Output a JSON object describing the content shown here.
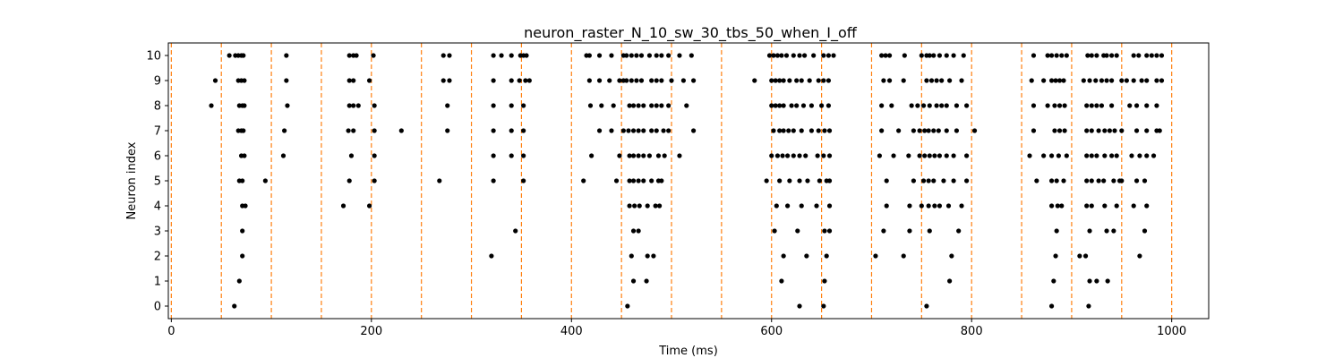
{
  "chart_data": {
    "type": "scatter",
    "title": "neuron_raster_N_10_sw_30_tbs_50_when_I_off",
    "xlabel": "Time (ms)",
    "ylabel": "Neuron index",
    "xlim": [
      -3,
      1037
    ],
    "ylim": [
      -0.5,
      10.5
    ],
    "xticks": [
      0,
      200,
      400,
      600,
      800,
      1000
    ],
    "yticks": [
      0,
      1,
      2,
      3,
      4,
      5,
      6,
      7,
      8,
      9,
      10
    ],
    "grid": false,
    "marker_color": "#000000",
    "vline_color": "#ff7f0e",
    "vline_style": "dashed",
    "vlines": [
      0,
      50,
      100,
      150,
      200,
      250,
      300,
      350,
      400,
      450,
      500,
      550,
      600,
      650,
      700,
      750,
      800,
      850,
      900,
      950,
      1000
    ],
    "series": [
      {
        "neuron": 10,
        "times": [
          58,
          64,
          67,
          70,
          72,
          115,
          178,
          182,
          185,
          202,
          272,
          278,
          322,
          330,
          340,
          349,
          352,
          355,
          415,
          418,
          428,
          440,
          452,
          455,
          460,
          465,
          470,
          478,
          485,
          490,
          497,
          508,
          520,
          598,
          602,
          606,
          610,
          615,
          622,
          628,
          633,
          642,
          652,
          657,
          662,
          710,
          714,
          718,
          733,
          750,
          755,
          758,
          762,
          768,
          775,
          782,
          792,
          862,
          876,
          880,
          885,
          890,
          895,
          916,
          920,
          925,
          932,
          935,
          940,
          945,
          962,
          967,
          975,
          980,
          985,
          990
        ]
      },
      {
        "neuron": 9,
        "times": [
          44,
          67,
          70,
          73,
          115,
          178,
          182,
          198,
          272,
          278,
          322,
          340,
          348,
          354,
          358,
          418,
          428,
          438,
          448,
          452,
          455,
          460,
          465,
          470,
          480,
          485,
          490,
          500,
          512,
          522,
          583,
          600,
          604,
          608,
          612,
          618,
          625,
          630,
          638,
          647,
          652,
          657,
          712,
          718,
          732,
          755,
          760,
          765,
          770,
          778,
          790,
          860,
          872,
          880,
          884,
          888,
          892,
          912,
          918,
          924,
          930,
          935,
          940,
          950,
          955,
          962,
          970,
          975,
          985,
          990
        ]
      },
      {
        "neuron": 8,
        "times": [
          40,
          68,
          71,
          73,
          116,
          178,
          182,
          187,
          203,
          276,
          322,
          340,
          352,
          419,
          430,
          442,
          458,
          462,
          467,
          472,
          480,
          485,
          490,
          497,
          515,
          600,
          604,
          608,
          612,
          620,
          625,
          632,
          640,
          650,
          657,
          710,
          720,
          740,
          746,
          752,
          758,
          765,
          770,
          775,
          785,
          795,
          862,
          876,
          883,
          888,
          893,
          915,
          920,
          925,
          930,
          940,
          958,
          965,
          975,
          985
        ]
      },
      {
        "neuron": 7,
        "times": [
          67,
          70,
          72,
          113,
          177,
          182,
          203,
          230,
          276,
          322,
          340,
          352,
          428,
          440,
          452,
          457,
          462,
          467,
          472,
          480,
          485,
          492,
          497,
          522,
          602,
          608,
          612,
          617,
          622,
          630,
          640,
          647,
          653,
          658,
          710,
          727,
          742,
          748,
          753,
          757,
          762,
          767,
          775,
          785,
          803,
          862,
          883,
          888,
          893,
          915,
          920,
          927,
          933,
          938,
          943,
          950,
          965,
          975,
          985,
          988
        ]
      },
      {
        "neuron": 6,
        "times": [
          70,
          73,
          112,
          180,
          203,
          322,
          340,
          352,
          420,
          448,
          458,
          462,
          467,
          472,
          478,
          487,
          493,
          508,
          600,
          606,
          611,
          616,
          622,
          628,
          634,
          646,
          652,
          658,
          708,
          722,
          737,
          748,
          753,
          758,
          763,
          768,
          775,
          782,
          795,
          858,
          872,
          880,
          887,
          895,
          915,
          920,
          925,
          933,
          940,
          945,
          960,
          968,
          975,
          982
        ]
      },
      {
        "neuron": 5,
        "times": [
          68,
          71,
          94,
          178,
          203,
          268,
          322,
          352,
          412,
          445,
          458,
          462,
          467,
          472,
          480,
          487,
          490,
          595,
          608,
          618,
          628,
          636,
          648,
          655,
          658,
          715,
          742,
          752,
          757,
          762,
          772,
          782,
          795,
          865,
          880,
          885,
          892,
          915,
          920,
          927,
          932,
          942,
          948,
          950,
          965,
          973
        ]
      },
      {
        "neuron": 4,
        "times": [
          71,
          74,
          172,
          198,
          458,
          463,
          468,
          476,
          484,
          488,
          605,
          616,
          630,
          645,
          658,
          715,
          738,
          750,
          757,
          763,
          768,
          777,
          790,
          880,
          886,
          890,
          915,
          920,
          933,
          945,
          962,
          975
        ]
      },
      {
        "neuron": 3,
        "times": [
          71,
          344,
          462,
          467,
          603,
          626,
          653,
          658,
          712,
          738,
          758,
          787,
          885,
          918,
          935,
          942,
          973
        ]
      },
      {
        "neuron": 2,
        "times": [
          71,
          320,
          460,
          476,
          482,
          612,
          635,
          655,
          704,
          732,
          780,
          884,
          908,
          914,
          968
        ]
      },
      {
        "neuron": 1,
        "times": [
          68,
          462,
          475,
          610,
          653,
          778,
          882,
          918,
          925,
          936
        ]
      },
      {
        "neuron": 0,
        "times": [
          63,
          456,
          628,
          652,
          755,
          880,
          917
        ]
      }
    ]
  }
}
